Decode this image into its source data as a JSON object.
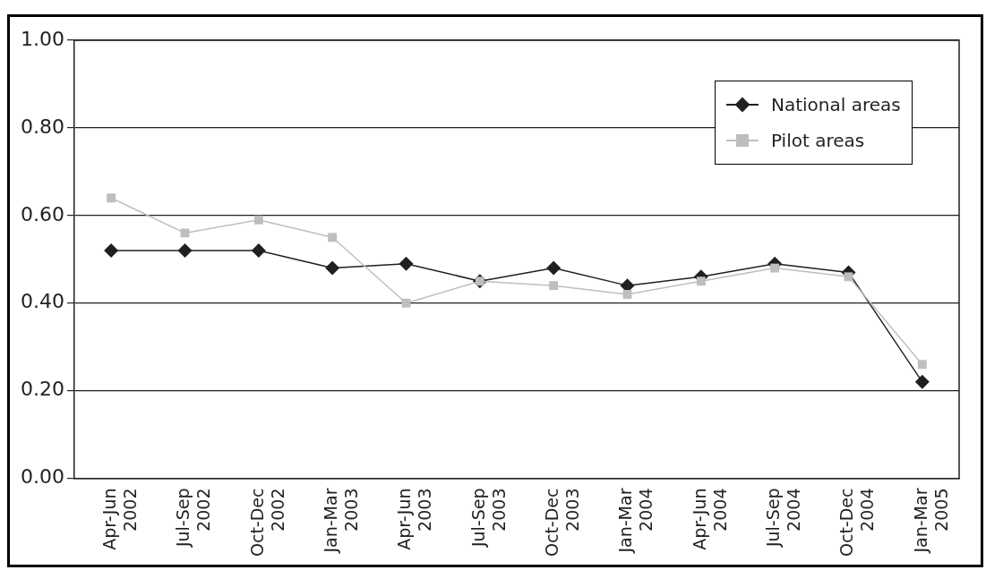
{
  "chart_data": {
    "type": "line",
    "categories": [
      "Apr-Jun 2002",
      "Jul-Sep 2002",
      "Oct-Dec 2002",
      "Jan-Mar 2003",
      "Apr-Jun 2003",
      "Jul-Sep 2003",
      "Oct-Dec 2003",
      "Jan-Mar 2004",
      "Apr-Jun 2004",
      "Jul-Sep 2004",
      "Oct-Dec 2004",
      "Jan-Mar 2005"
    ],
    "series": [
      {
        "name": "National areas",
        "color": "#231f20",
        "marker": "diamond",
        "values": [
          0.52,
          0.52,
          0.52,
          0.48,
          0.49,
          0.45,
          0.48,
          0.44,
          0.46,
          0.49,
          0.47,
          0.22
        ]
      },
      {
        "name": "Pilot areas",
        "color": "#bcbec0",
        "marker": "square",
        "values": [
          0.64,
          0.56,
          0.59,
          0.55,
          0.4,
          0.45,
          0.44,
          0.42,
          0.45,
          0.48,
          0.46,
          0.26
        ]
      }
    ],
    "ylim": [
      0,
      1
    ],
    "yticks": [
      {
        "value": 0,
        "label": "0.00"
      },
      {
        "value": 0.2,
        "label": "0.20"
      },
      {
        "value": 0.4,
        "label": "0.40"
      },
      {
        "value": 0.6,
        "label": "0.60"
      },
      {
        "value": 0.8,
        "label": "0.80"
      },
      {
        "value": 1,
        "label": "1.00"
      }
    ],
    "grid": "y",
    "legend": "top right",
    "line_style": "solid"
  }
}
